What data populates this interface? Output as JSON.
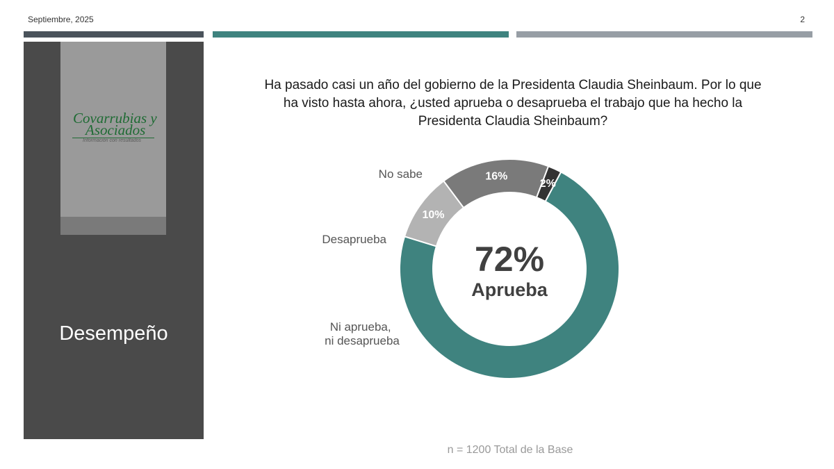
{
  "header": {
    "date": "Septiembre, 2025",
    "page_number": "2"
  },
  "colors": {
    "bar_dark": "#4a535b",
    "bar_teal": "#3f837f",
    "bar_gray": "#979ea5",
    "panel": "#4a4a4a",
    "logo_box": "#9a9a9a",
    "logo_strip": "#7a7a7a",
    "logo_green": "#1f6b34",
    "logo_tagline": "#5a5a5a"
  },
  "sidebar": {
    "logo": {
      "line1": "Covarrubias y",
      "line2": "Asociados",
      "tagline": "Información con resultados"
    },
    "section_title": "Desempeño"
  },
  "question": "Ha pasado casi un año del gobierno de la Presidenta Claudia Sheinbaum. Por lo que ha visto hasta ahora, ¿usted aprueba o desaprueba el trabajo que ha hecho la Presidenta Claudia Sheinbaum?",
  "chart_data": {
    "type": "pie",
    "donut": true,
    "slices": [
      {
        "label": "Aprueba",
        "value": 72,
        "display": "72%",
        "color": "#3f837f"
      },
      {
        "label": "Ni aprueba, ni desaprueba",
        "value": 10,
        "display": "10%",
        "color": "#b3b3b3"
      },
      {
        "label": "Desaprueba",
        "value": 16,
        "display": "16%",
        "color": "#7a7a7a"
      },
      {
        "label": "No sabe",
        "value": 2,
        "display": "2%",
        "color": "#333333"
      }
    ],
    "center_value": "72%",
    "center_label": "Aprueba"
  },
  "footer": {
    "base_note": "n = 1200 Total de la Base"
  }
}
